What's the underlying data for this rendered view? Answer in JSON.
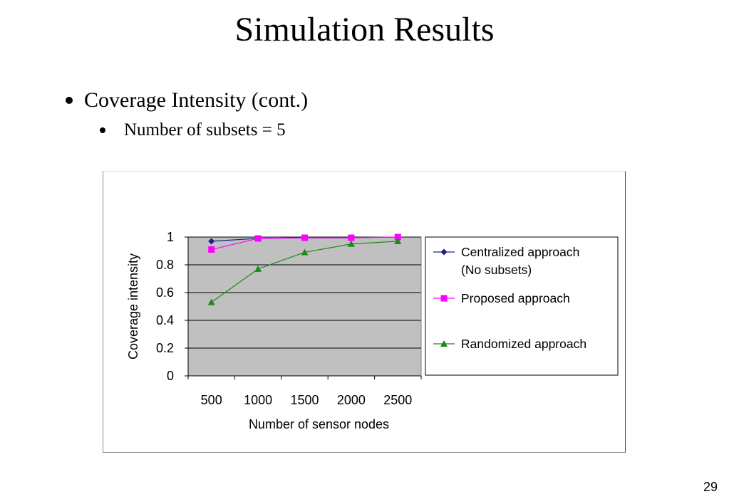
{
  "slide": {
    "title": "Simulation Results",
    "bullet_1": "Coverage Intensity (cont.)",
    "bullet_2": "Number of subsets = 5",
    "page_number": "29"
  },
  "chart_data": {
    "type": "line",
    "title": "",
    "xlabel": "Number of sensor nodes",
    "ylabel": "Coverage intensity",
    "categories": [
      "500",
      "1000",
      "1500",
      "2000",
      "2500"
    ],
    "ylim": [
      0,
      1
    ],
    "yticks": [
      "0",
      "0.2",
      "0.4",
      "0.6",
      "0.8",
      "1"
    ],
    "ytick_values": [
      0,
      0.2,
      0.4,
      0.6,
      0.8,
      1
    ],
    "grid": "horizontal",
    "plot_background": "#c0c0c0",
    "legend_position": "right",
    "series": [
      {
        "name": "Centralized approach (No subsets)",
        "legend_lines": [
          "Centralized approach",
          "(No subsets)"
        ],
        "values": [
          0.97,
          0.99,
          0.995,
          0.995,
          1.0
        ],
        "color": "#1f1f8c",
        "marker": "diamond"
      },
      {
        "name": "Proposed approach",
        "legend_lines": [
          "Proposed approach"
        ],
        "values": [
          0.91,
          0.99,
          0.995,
          0.995,
          1.0
        ],
        "color": "#ff00ff",
        "marker": "square"
      },
      {
        "name": "Randomized approach",
        "legend_lines": [
          "Randomized approach"
        ],
        "values": [
          0.53,
          0.77,
          0.89,
          0.95,
          0.97
        ],
        "color": "#1a8a1a",
        "marker": "triangle"
      }
    ]
  }
}
